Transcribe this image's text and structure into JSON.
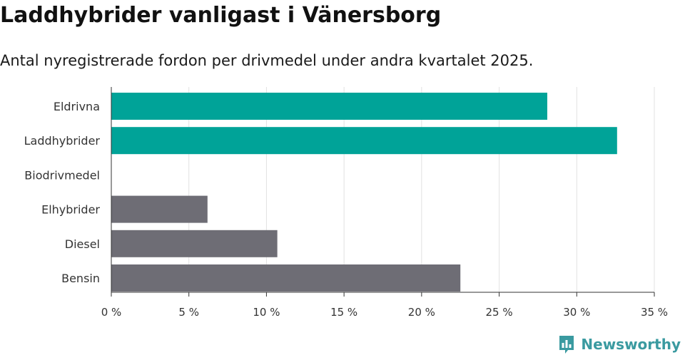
{
  "title": "Laddhybrider vanligast i Vänersborg",
  "subtitle": "Antal nyregistrerade fordon per drivmedel under andra kvartalet 2025.",
  "brand": {
    "name": "Newsworthy",
    "icon": "newsworthy-logo-icon",
    "color": "#3a9aa0"
  },
  "chart_data": {
    "type": "bar",
    "orientation": "horizontal",
    "categories": [
      "Eldrivna",
      "Laddhybrider",
      "Biodrivmedel",
      "Elhybrider",
      "Diesel",
      "Bensin"
    ],
    "values": [
      28.1,
      32.6,
      0,
      6.2,
      10.7,
      22.5
    ],
    "colors": [
      "#00a398",
      "#00a398",
      "#00a398",
      "#6e6d75",
      "#6e6d75",
      "#6e6d75"
    ],
    "xlim": [
      0,
      35
    ],
    "xticks": [
      0,
      5,
      10,
      15,
      20,
      25,
      30,
      35
    ],
    "tick_labels": [
      "0 %",
      "5 %",
      "10 %",
      "15 %",
      "20 %",
      "25 %",
      "30 %",
      "35 %"
    ],
    "grid": true,
    "xlabel": "",
    "ylabel": ""
  }
}
